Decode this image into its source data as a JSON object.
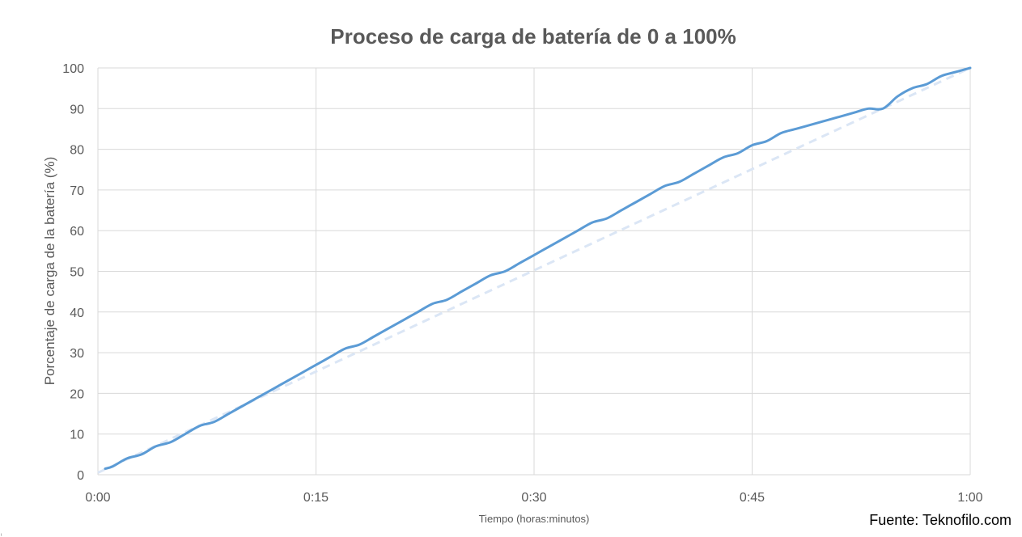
{
  "chart_data": {
    "type": "line",
    "title": "Proceso de carga de batería de 0 a 100%",
    "xlabel": "Tiempo (horas:minutos)",
    "ylabel": "Porcentaje de carga de la batería (%)",
    "x_tick_labels": [
      "0:00",
      "0:15",
      "0:30",
      "0:45",
      "1:00"
    ],
    "x_tick_minutes": [
      0,
      15,
      30,
      45,
      60
    ],
    "y_tick_labels": [
      "0",
      "10",
      "20",
      "30",
      "40",
      "50",
      "60",
      "70",
      "80",
      "90",
      "100"
    ],
    "xlim_minutes": [
      0,
      60
    ],
    "ylim": [
      0,
      100
    ],
    "grid": true,
    "legend": "none",
    "series": [
      {
        "color": "#5b9bd5",
        "style": "solid",
        "x_minutes": [
          0.5,
          1,
          2,
          3,
          4,
          5,
          6,
          7,
          8,
          9,
          10,
          11,
          12,
          13,
          14,
          15,
          16,
          17,
          18,
          19,
          20,
          21,
          22,
          23,
          24,
          25,
          26,
          27,
          28,
          29,
          30,
          31,
          32,
          33,
          34,
          35,
          36,
          37,
          38,
          39,
          40,
          41,
          42,
          43,
          44,
          45,
          46,
          47,
          48,
          49,
          50,
          51,
          52,
          53,
          54,
          55,
          56,
          57,
          58,
          59,
          60
        ],
        "values": [
          1.5,
          2,
          4,
          5,
          7,
          8,
          10,
          12,
          13,
          15,
          17,
          19,
          21,
          23,
          25,
          27,
          29,
          31,
          32,
          34,
          36,
          38,
          40,
          42,
          43,
          45,
          47,
          49,
          50,
          52,
          54,
          56,
          58,
          60,
          62,
          63,
          65,
          67,
          69,
          71,
          72,
          74,
          76,
          78,
          79,
          81,
          82,
          84,
          85,
          86,
          87,
          88,
          89,
          90,
          90,
          93,
          95,
          96,
          98,
          99,
          100
        ]
      },
      {
        "color": "#dbe6f5",
        "style": "dashed",
        "x_minutes": [
          0,
          60
        ],
        "values": [
          0.5,
          100
        ]
      }
    ]
  },
  "source": "Fuente: Teknofilo.com",
  "corner_mark": "t"
}
